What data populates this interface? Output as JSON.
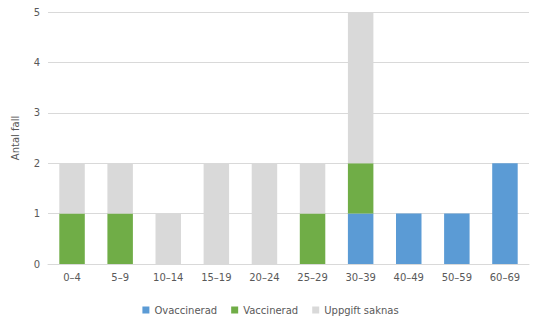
{
  "chart_data": {
    "type": "bar",
    "stacked": true,
    "y_label": "Antal fall",
    "categories": [
      "0–4",
      "5–9",
      "10–14",
      "15–19",
      "20–24",
      "25–29",
      "30–39",
      "40–49",
      "50–59",
      "60–69"
    ],
    "series": [
      {
        "name": "Ovaccinerad",
        "color": "#5b9bd5",
        "values": [
          0,
          0,
          0,
          0,
          0,
          0,
          1,
          1,
          1,
          2
        ]
      },
      {
        "name": "Vaccinerad",
        "color": "#70ad47",
        "values": [
          1,
          1,
          0,
          0,
          0,
          1,
          1,
          0,
          0,
          0
        ]
      },
      {
        "name": "Uppgift saknas",
        "color": "#d9d9d9",
        "values": [
          1,
          1,
          1,
          2,
          2,
          1,
          3,
          0,
          0,
          0
        ]
      }
    ],
    "ylim": [
      0,
      5
    ],
    "yticks": [
      0,
      1,
      2,
      3,
      4,
      5
    ],
    "grid": true,
    "legend": "bottom"
  }
}
